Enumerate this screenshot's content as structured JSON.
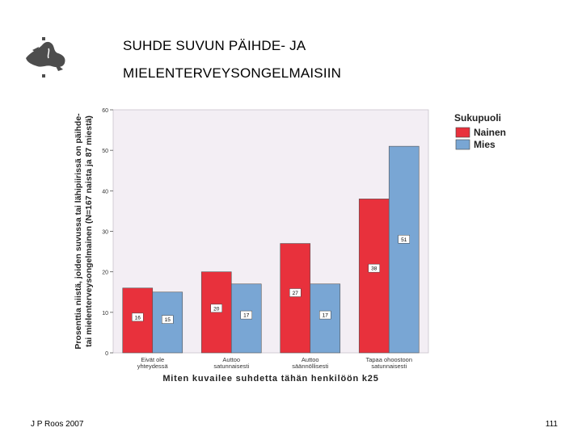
{
  "slide": {
    "title_line1": "SUHDE SUVUN PÄIHDE- JA",
    "title_line2": "MIELENTERVEYSONGELMAISIIN",
    "footer_author": "J P Roos 2007",
    "page_number": "111"
  },
  "chart_data": {
    "type": "bar",
    "title": "",
    "ylabel_line1": "Prosenttia niistä, joiden suvussa tai lähipiirissä on päihde-",
    "ylabel_line2": "tai mielenterveysongelmainen (N=167 naista ja 87 miestä)",
    "xlabel": "Miten kuvailee suhdetta tähän henkilöön k25",
    "ylim": [
      0,
      60
    ],
    "yticks": [
      0,
      10,
      20,
      30,
      40,
      50,
      60
    ],
    "categories": [
      [
        "Eivät ole",
        "yhteydessä"
      ],
      [
        "Auttoo",
        "satunnaisesti"
      ],
      [
        "Auttoo",
        "säännöllisesti"
      ],
      [
        "Tapaa ohoostoon",
        "satunnaisesti"
      ]
    ],
    "legend_title": "Sukupuoli",
    "legend_position": "right",
    "series": [
      {
        "name": "Nainen",
        "color": "#e8313c",
        "values": [
          16,
          20,
          27,
          38
        ],
        "labels": [
          "16",
          "20",
          "27",
          "38"
        ]
      },
      {
        "name": "Mies",
        "color": "#79a6d4",
        "values": [
          15,
          17,
          17,
          51
        ],
        "labels": [
          "15",
          "17",
          "17",
          "51"
        ]
      }
    ],
    "plot_background": "#f3eef4"
  }
}
